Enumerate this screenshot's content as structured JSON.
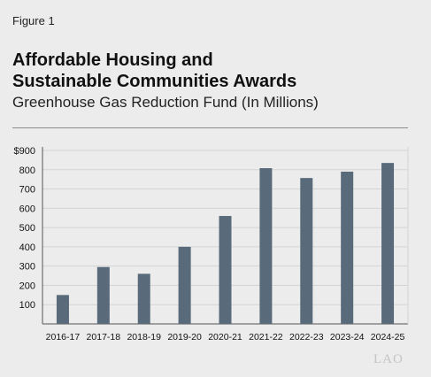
{
  "figure": {
    "label": "Figure 1",
    "title_line1": "Affordable Housing and",
    "title_line2": "Sustainable Communities Awards",
    "subtitle": "Greenhouse Gas Reduction Fund (In Millions)",
    "watermark": "LAO"
  },
  "colors": {
    "bar": "#596a7a",
    "grid": "#d4d4d4",
    "axis": "#555555"
  },
  "chart_data": {
    "type": "bar",
    "title": "Affordable Housing and Sustainable Communities Awards",
    "subtitle": "Greenhouse Gas Reduction Fund (In Millions)",
    "categories": [
      "2016-17",
      "2017-18",
      "2018-19",
      "2019-20",
      "2020-21",
      "2021-22",
      "2022-23",
      "2023-24",
      "2024-25"
    ],
    "values": [
      150,
      295,
      260,
      400,
      560,
      808,
      757,
      790,
      835
    ],
    "ylim": [
      0,
      900
    ],
    "yticks": [
      100,
      200,
      300,
      400,
      500,
      600,
      700,
      800,
      900
    ],
    "ytick_labels": [
      "100",
      "200",
      "300",
      "400",
      "500",
      "600",
      "700",
      "800",
      "$900"
    ],
    "grid": true
  }
}
